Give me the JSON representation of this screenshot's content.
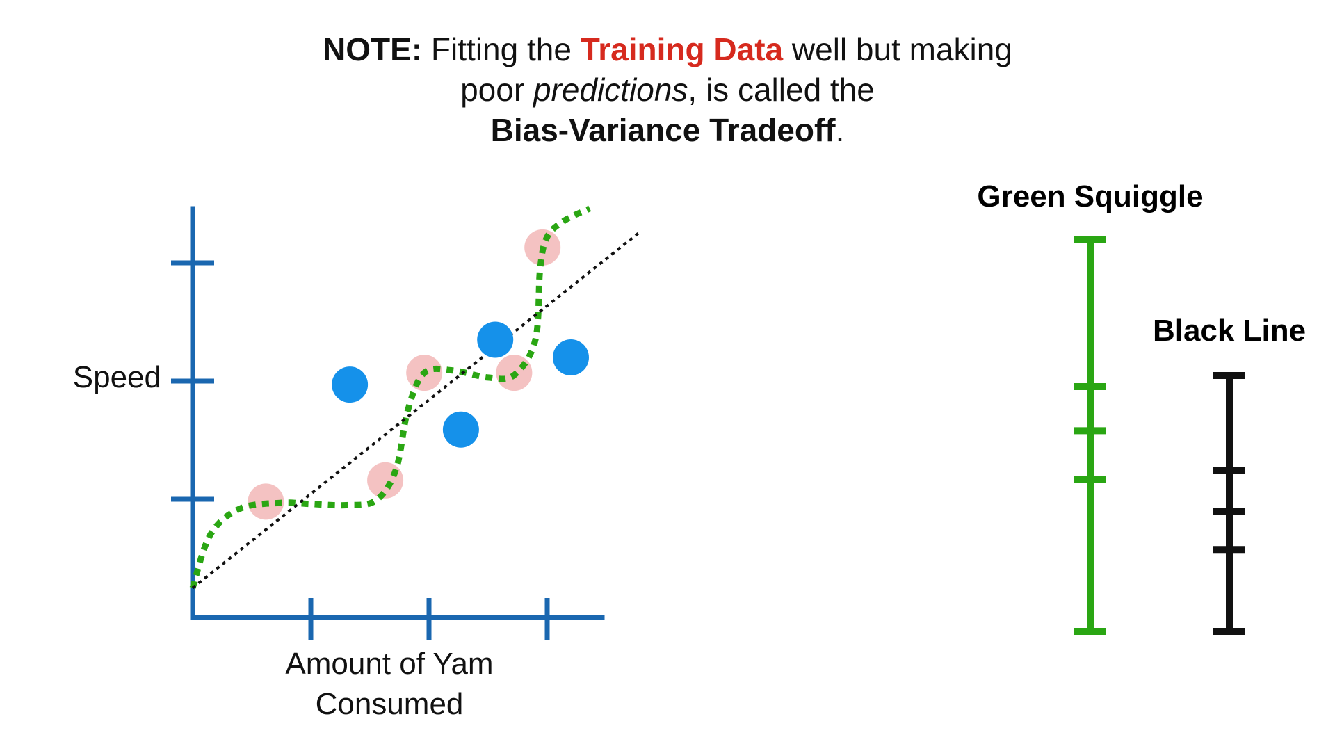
{
  "note": {
    "note_label": "NOTE:",
    "text_1": " Fitting the ",
    "highlight": "Training Data",
    "text_2": " well but making",
    "text_3": "poor ",
    "text_3_italic": "predictions",
    "text_4": ", is called the",
    "term": "Bias-Variance Tradeoff",
    "term_end": "."
  },
  "chart_data": {
    "type": "scatter",
    "xlabel_lines": [
      "Amount of Yam",
      "Consumed"
    ],
    "ylabel": "Speed",
    "xlim": [
      0,
      3.5
    ],
    "ylim": [
      0,
      3.2
    ],
    "x_ticks": [
      1,
      2,
      3
    ],
    "y_ticks": [
      1,
      2,
      3
    ],
    "series": [
      {
        "role": "training",
        "color": "#f4c2c2",
        "points": [
          [
            0.62,
            0.98
          ],
          [
            1.63,
            1.16
          ],
          [
            1.96,
            2.07
          ],
          [
            2.72,
            2.07
          ],
          [
            2.96,
            3.13
          ]
        ]
      },
      {
        "role": "testing",
        "color": "#1591ea",
        "points": [
          [
            1.33,
            1.97
          ],
          [
            2.27,
            1.59
          ],
          [
            2.56,
            2.35
          ],
          [
            3.2,
            2.2
          ]
        ]
      }
    ],
    "lines": [
      {
        "role": "squiggle",
        "color": "#2aa613",
        "style": "dotted",
        "points": [
          [
            0,
            0.25
          ],
          [
            0.15,
            0.7
          ],
          [
            0.4,
            0.92
          ],
          [
            0.75,
            0.97
          ],
          [
            1.0,
            0.96
          ],
          [
            1.3,
            0.95
          ],
          [
            1.55,
            0.99
          ],
          [
            1.72,
            1.25
          ],
          [
            1.82,
            1.75
          ],
          [
            1.96,
            2.07
          ],
          [
            2.2,
            2.09
          ],
          [
            2.5,
            2.03
          ],
          [
            2.72,
            2.05
          ],
          [
            2.9,
            2.35
          ],
          [
            2.94,
            2.95
          ],
          [
            3.0,
            3.22
          ],
          [
            3.15,
            3.36
          ],
          [
            3.36,
            3.46
          ]
        ]
      },
      {
        "role": "linear",
        "color": "#111111",
        "style": "dotted",
        "points": [
          [
            0,
            0.25
          ],
          [
            3.77,
            3.25
          ]
        ]
      }
    ]
  },
  "comparison": {
    "green": {
      "title": "Green Squiggle",
      "color": "#2aa613",
      "ticks": [
        0,
        0.62,
        0.82,
        1.0,
        1.6
      ]
    },
    "black": {
      "title": "Black Line",
      "color": "#111111",
      "ticks": [
        0,
        0.32,
        0.47,
        0.63,
        1.0
      ]
    }
  }
}
